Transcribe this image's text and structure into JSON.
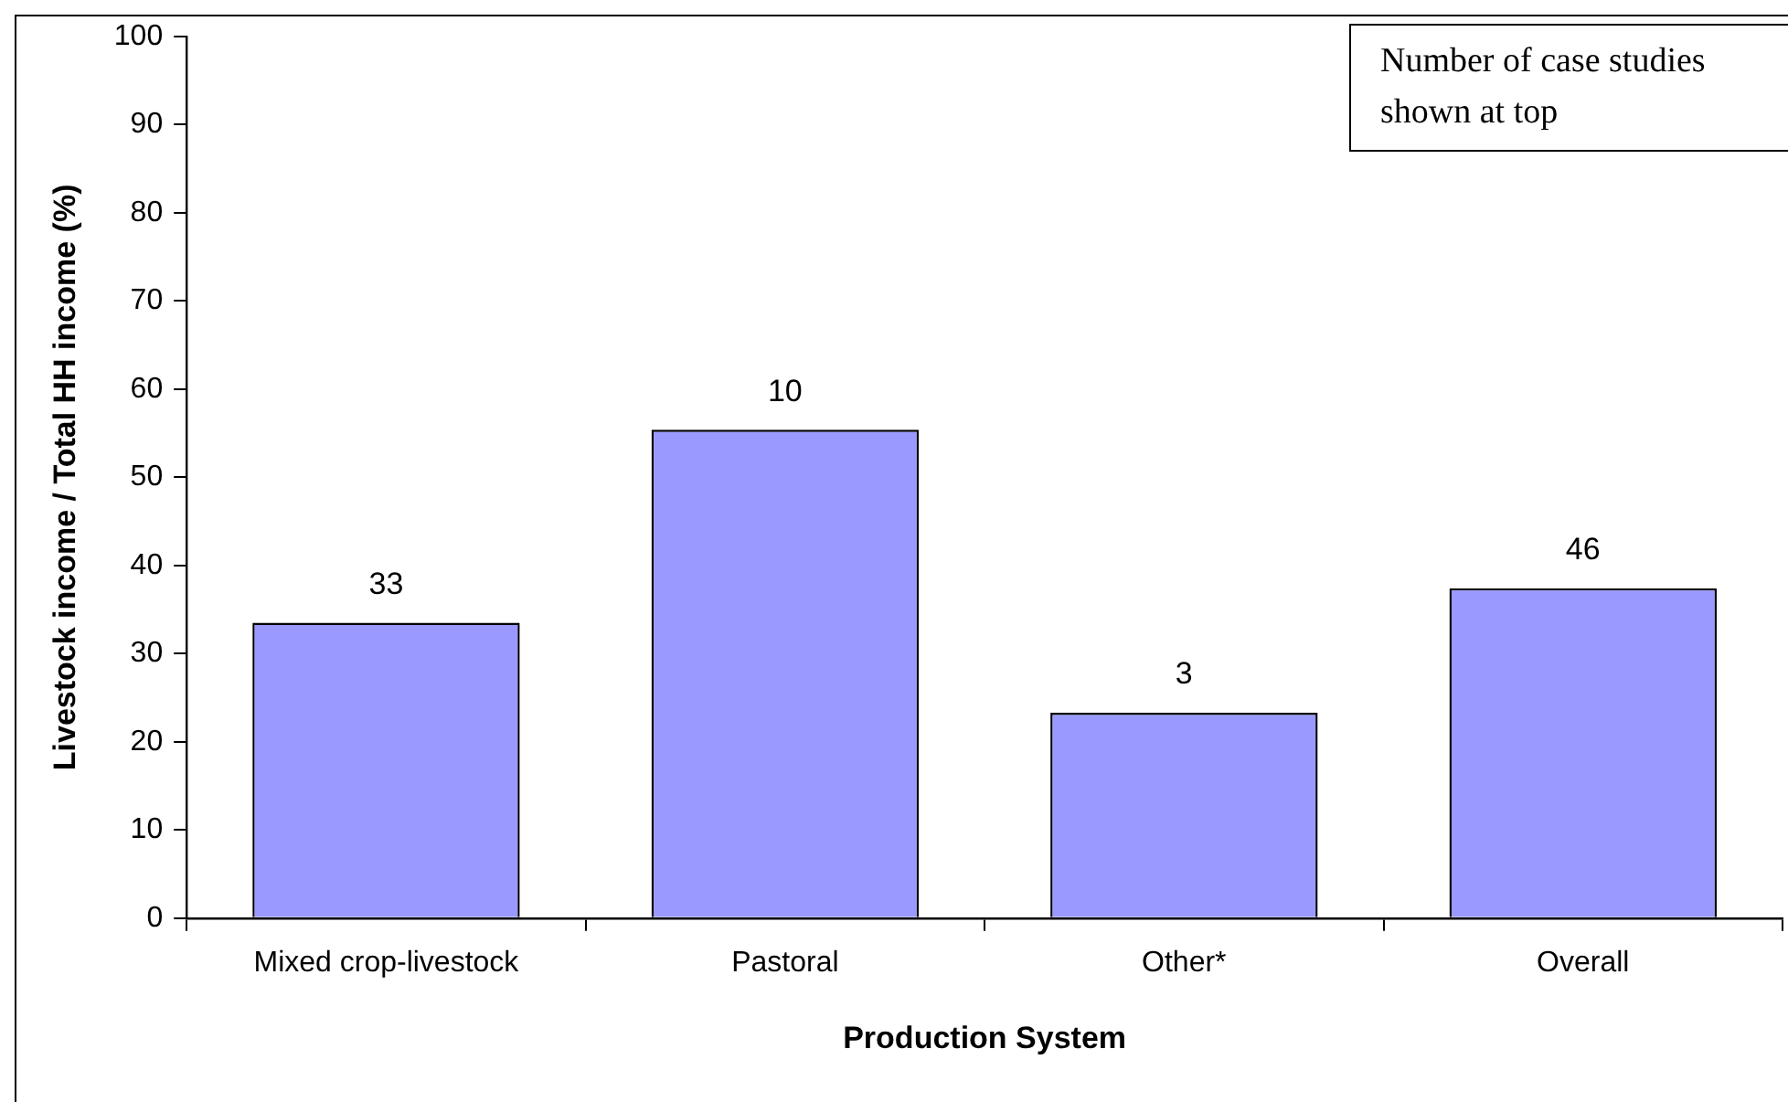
{
  "chart_data": {
    "type": "bar",
    "xlabel": "Production System",
    "ylabel": "Livestock income / Total HH income (%)",
    "categories": [
      "Mixed crop-livestock",
      "Pastoral",
      "Other*",
      "Overall"
    ],
    "values": [
      33.5,
      55.4,
      23.3,
      37.4
    ],
    "color": "#9999ff",
    "ylim": [
      0,
      100
    ],
    "yticks": [
      0,
      10,
      20,
      30,
      40,
      50,
      60,
      70,
      80,
      90,
      100
    ],
    "grid": false,
    "legend": false,
    "annotations": [
      "Number of case studies shown at top",
      {
        "text": "33",
        "x": "Mixed crop-livestock",
        "y": 33.5
      },
      {
        "text": "10",
        "x": "Pastoral",
        "y": 55.4
      },
      {
        "text": "3",
        "x": "Other*",
        "y": 23.3
      },
      {
        "text": "46",
        "x": "Overall",
        "y": 37.4
      }
    ]
  }
}
